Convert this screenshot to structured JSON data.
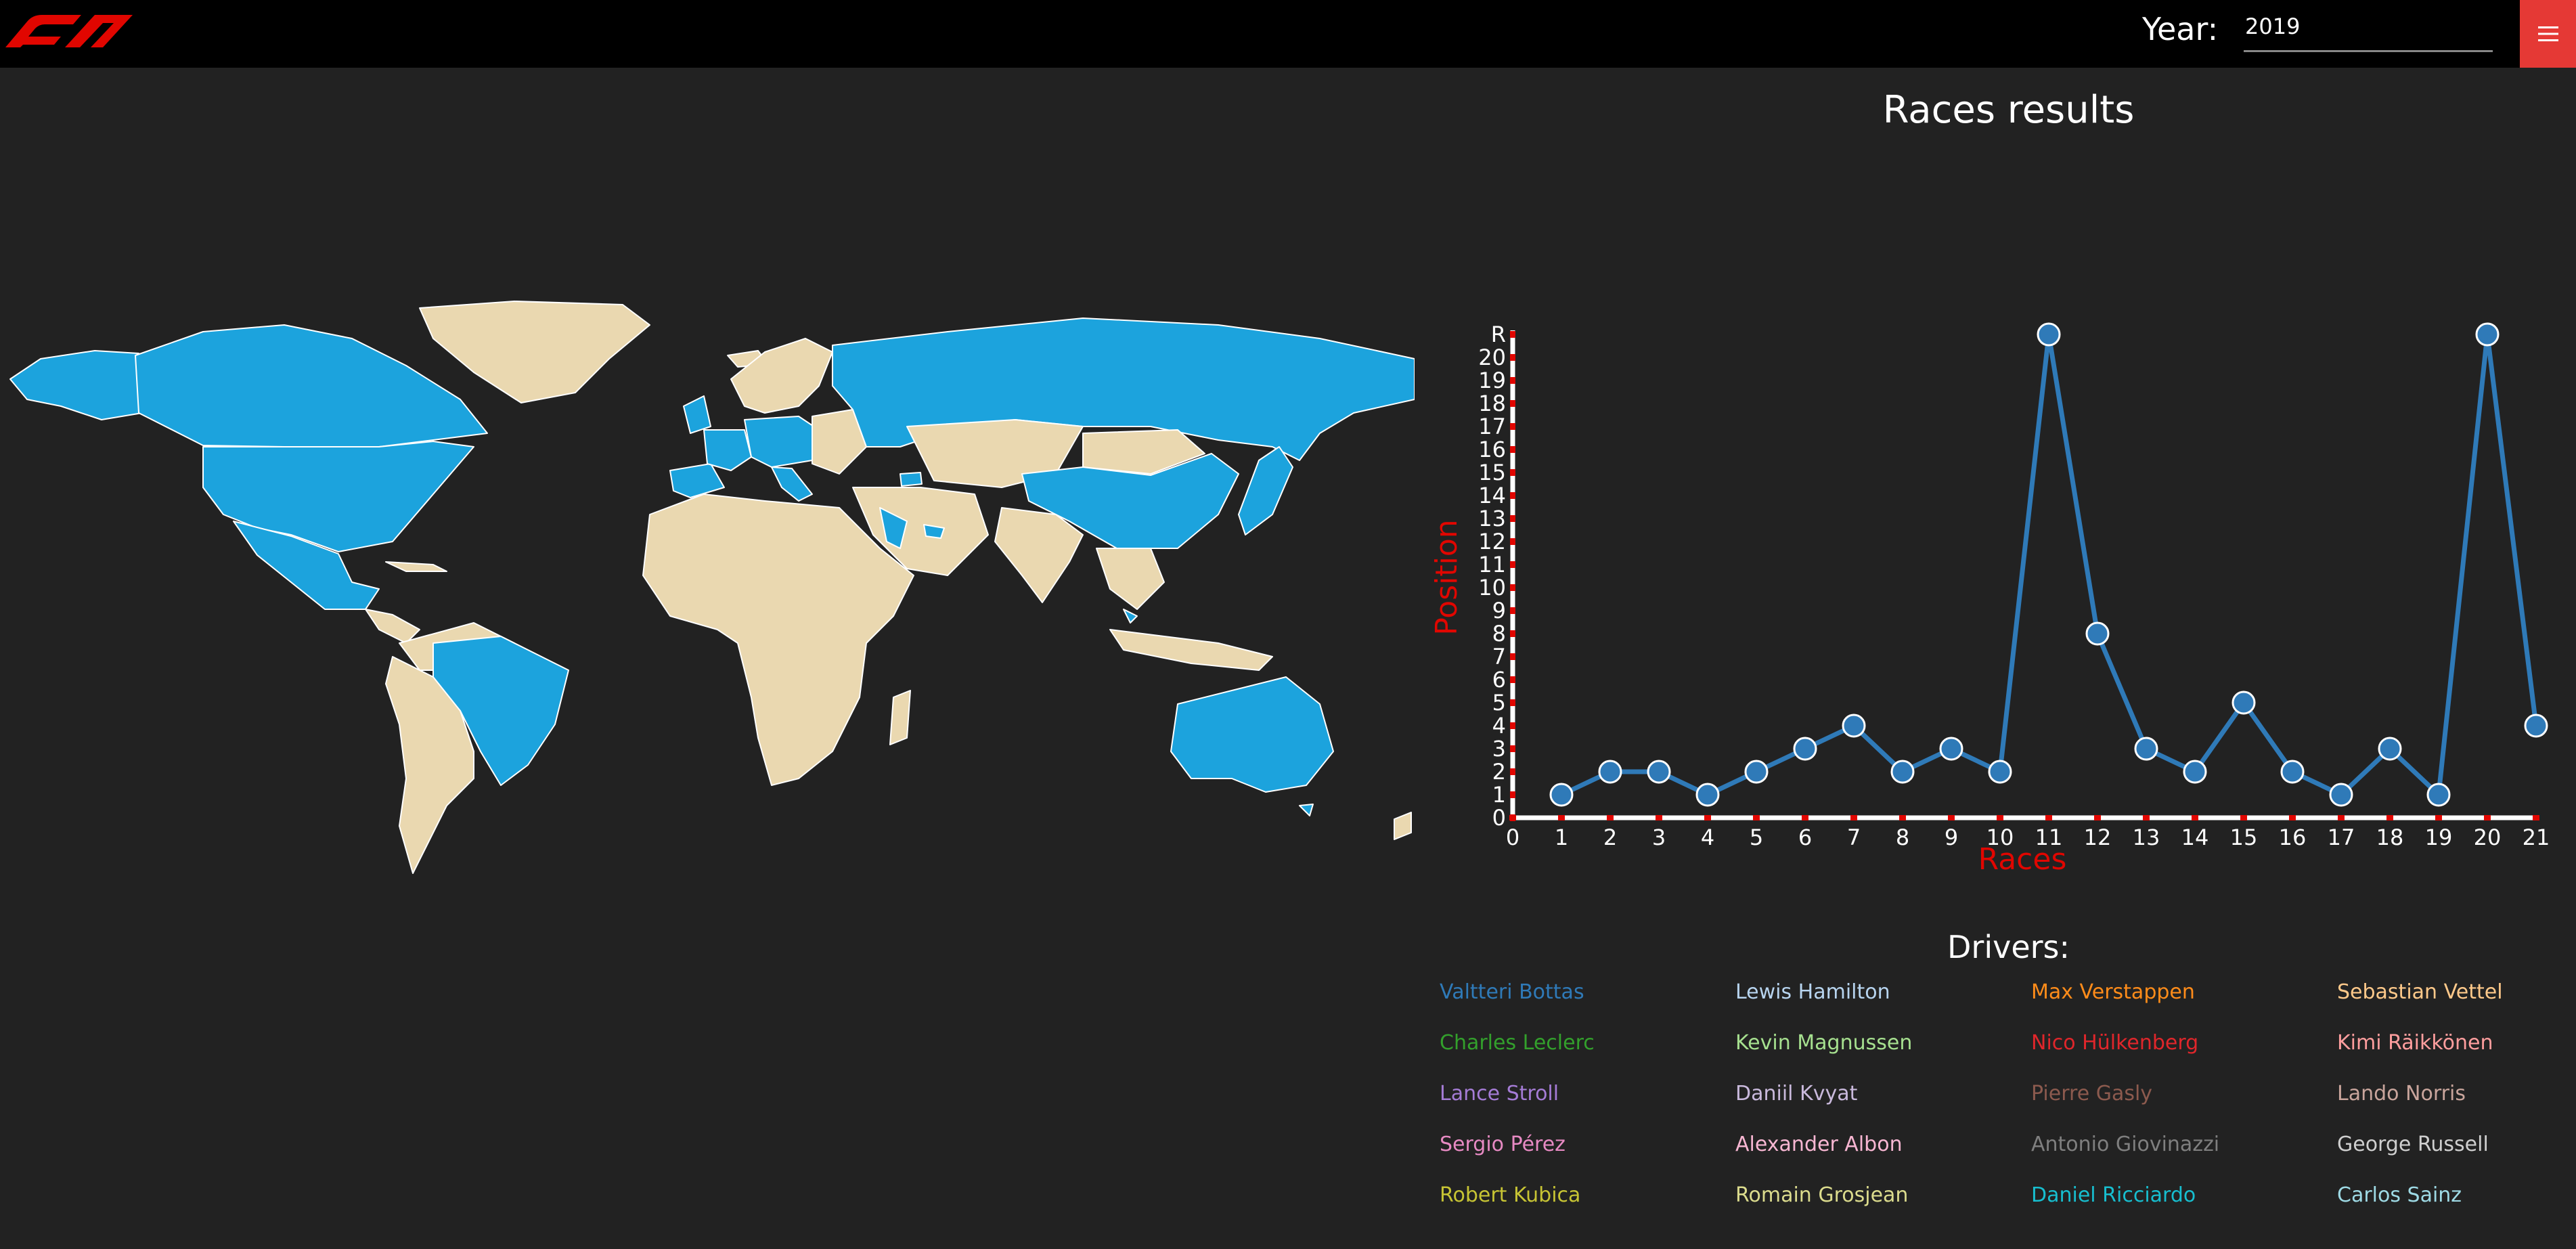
{
  "header": {
    "year_label": "Year:",
    "year_value": "2019",
    "logo_icon": "f1-logo",
    "menu_icon": "hamburger-menu-icon",
    "accent_color": "#e53935"
  },
  "map": {
    "highlight_color": "#1ca3dd",
    "land_color": "#ead8b0"
  },
  "chart_title": "Races results",
  "chart_data": {
    "type": "line",
    "xlabel": "Races",
    "ylabel": "Position",
    "x": [
      1,
      2,
      3,
      4,
      5,
      6,
      7,
      8,
      9,
      10,
      11,
      12,
      13,
      14,
      15,
      16,
      17,
      18,
      19,
      20,
      21
    ],
    "values": [
      1,
      2,
      2,
      1,
      2,
      3,
      4,
      2,
      3,
      2,
      21,
      8,
      3,
      2,
      5,
      2,
      1,
      3,
      1,
      21,
      4
    ],
    "xlim": [
      0,
      21
    ],
    "ylim": [
      0,
      21
    ],
    "x_ticks": [
      "0",
      "1",
      "2",
      "3",
      "4",
      "5",
      "6",
      "7",
      "8",
      "9",
      "10",
      "11",
      "12",
      "13",
      "14",
      "15",
      "16",
      "17",
      "18",
      "19",
      "20",
      "21"
    ],
    "y_ticks": [
      "0",
      "1",
      "2",
      "3",
      "4",
      "5",
      "6",
      "7",
      "8",
      "9",
      "10",
      "11",
      "12",
      "13",
      "14",
      "15",
      "16",
      "17",
      "18",
      "19",
      "20",
      "R"
    ],
    "line_color": "#2f7ab8",
    "axis_label_color": "#e10600",
    "grid": false
  },
  "drivers": {
    "title": "Drivers:",
    "items": [
      {
        "name": "Valtteri Bottas",
        "color": "#2f7ab8"
      },
      {
        "name": "Lewis Hamilton",
        "color": "#b7d4ef"
      },
      {
        "name": "Max Verstappen",
        "color": "#ff8c1a"
      },
      {
        "name": "Sebastian Vettel",
        "color": "#ffc98a"
      },
      {
        "name": "Charles Leclerc",
        "color": "#33a02c"
      },
      {
        "name": "Kevin Magnussen",
        "color": "#a6e08f"
      },
      {
        "name": "Nico Hülkenberg",
        "color": "#e0262b"
      },
      {
        "name": "Kimi Räikkönen",
        "color": "#ff9e9e"
      },
      {
        "name": "Lance Stroll",
        "color": "#a57cd6"
      },
      {
        "name": "Daniil Kvyat",
        "color": "#c9b9dc"
      },
      {
        "name": "Pierre Gasly",
        "color": "#8c5a4e"
      },
      {
        "name": "Lando Norris",
        "color": "#c9a59c"
      },
      {
        "name": "Sergio Pérez",
        "color": "#e78ac3"
      },
      {
        "name": "Alexander Albon",
        "color": "#f7b6d2"
      },
      {
        "name": "Antonio Giovinazzi",
        "color": "#7f7f7f"
      },
      {
        "name": "George Russell",
        "color": "#cfcfcf"
      },
      {
        "name": "Robert Kubica",
        "color": "#c7c434"
      },
      {
        "name": "Romain Grosjean",
        "color": "#dbdb8d"
      },
      {
        "name": "Daniel Ricciardo",
        "color": "#17becf"
      },
      {
        "name": "Carlos Sainz",
        "color": "#9edae5"
      }
    ]
  }
}
